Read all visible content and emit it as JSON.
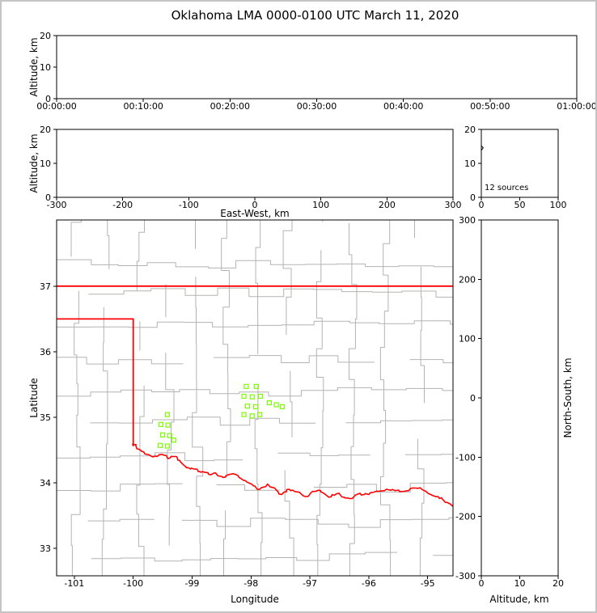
{
  "title": "Oklahoma LMA 0000-0100 UTC March 11, 2020",
  "colors": {
    "background": "#ffffff",
    "frame_border": "#c4c4c4",
    "axis": "#000000",
    "county_lines": "#b3b3b3",
    "state_border": "#ff0000",
    "marker": "#7cfc00"
  },
  "panels": {
    "time_height": {
      "ylabel": "Altitude, km",
      "yticks": [
        0,
        10,
        20
      ],
      "xticks": [
        "00:00:00",
        "00:10:00",
        "00:20:00",
        "00:30:00",
        "00:40:00",
        "00:50:00",
        "01:00:00"
      ]
    },
    "ew_height": {
      "xlabel": "East-West, km",
      "ylabel": "Altitude, km",
      "xticks": [
        -300,
        -200,
        -100,
        0,
        100,
        200,
        300
      ],
      "yticks": [
        0,
        10,
        20
      ]
    },
    "alt_histogram": {
      "annotation": "12 sources",
      "xticks": [
        0,
        50,
        100
      ],
      "yticks": [
        0,
        10,
        20
      ]
    },
    "map": {
      "xlabel": "Longitude",
      "ylabel": "Latitude",
      "xticks": [
        -101,
        -100,
        -99,
        -98,
        -97,
        -96,
        -95
      ],
      "yticks": [
        33,
        34,
        35,
        36,
        37
      ],
      "lon_range": [
        -101.3,
        -94.57
      ],
      "lat_range": [
        32.58,
        38.01
      ]
    },
    "ns_height": {
      "xlabel": "Altitude, km",
      "ylabel": "North-South, km",
      "xticks": [
        0,
        10,
        20
      ],
      "yticks": [
        300,
        200,
        100,
        0,
        -100,
        -200,
        -300
      ]
    }
  },
  "chart_data": {
    "type": "scatter",
    "title": "Oklahoma LMA 0000-0100 UTC March 11, 2020",
    "source_count_annotation": "12 sources",
    "time_height_points": [],
    "ew_height_points": [],
    "ns_height_points": [],
    "altitude_histogram_profile": [
      [
        0,
        0
      ],
      [
        0,
        13.8
      ],
      [
        2.5,
        14.6
      ],
      [
        0,
        15.2
      ],
      [
        0,
        20
      ]
    ],
    "map_markers": {
      "marker": "open-square",
      "color": "#7cfc00",
      "points_lon_lat": [
        [
          -98.08,
          35.47
        ],
        [
          -97.91,
          35.47
        ],
        [
          -98.12,
          35.32
        ],
        [
          -97.98,
          35.31
        ],
        [
          -97.84,
          35.32
        ],
        [
          -98.06,
          35.17
        ],
        [
          -97.92,
          35.16
        ],
        [
          -98.12,
          35.04
        ],
        [
          -97.98,
          35.02
        ],
        [
          -97.85,
          35.04
        ],
        [
          -97.69,
          35.22
        ],
        [
          -97.57,
          35.19
        ],
        [
          -97.47,
          35.16
        ],
        [
          -99.42,
          35.04
        ],
        [
          -99.53,
          34.89
        ],
        [
          -99.41,
          34.88
        ],
        [
          -99.5,
          34.73
        ],
        [
          -99.38,
          34.72
        ],
        [
          -99.54,
          34.57
        ],
        [
          -99.42,
          34.56
        ],
        [
          -99.31,
          34.65
        ]
      ]
    },
    "state_border": {
      "north_border": [
        [
          -101.3,
          37.0
        ],
        [
          -94.57,
          37.0
        ]
      ],
      "west_border": [
        [
          -101.3,
          36.5
        ],
        [
          -100.0,
          36.5
        ],
        [
          -100.0,
          34.56
        ]
      ],
      "red_river": [
        [
          -100.0,
          34.56
        ],
        [
          -99.95,
          34.58
        ],
        [
          -99.9,
          34.51
        ],
        [
          -99.82,
          34.47
        ],
        [
          -99.72,
          34.42
        ],
        [
          -99.6,
          34.4
        ],
        [
          -99.5,
          34.43
        ],
        [
          -99.4,
          34.37
        ],
        [
          -99.3,
          34.4
        ],
        [
          -99.21,
          34.34
        ],
        [
          -99.1,
          34.23
        ],
        [
          -98.97,
          34.21
        ],
        [
          -98.85,
          34.16
        ],
        [
          -98.72,
          34.13
        ],
        [
          -98.6,
          34.15
        ],
        [
          -98.47,
          34.08
        ],
        [
          -98.35,
          34.13
        ],
        [
          -98.22,
          34.11
        ],
        [
          -98.09,
          34.03
        ],
        [
          -97.95,
          33.95
        ],
        [
          -97.85,
          33.9
        ],
        [
          -97.72,
          33.98
        ],
        [
          -97.6,
          33.92
        ],
        [
          -97.48,
          33.82
        ],
        [
          -97.35,
          33.9
        ],
        [
          -97.21,
          33.86
        ],
        [
          -97.08,
          33.79
        ],
        [
          -96.95,
          33.87
        ],
        [
          -96.82,
          33.88
        ],
        [
          -96.68,
          33.78
        ],
        [
          -96.55,
          33.83
        ],
        [
          -96.42,
          33.78
        ],
        [
          -96.28,
          33.76
        ],
        [
          -96.15,
          33.84
        ],
        [
          -96.0,
          33.82
        ],
        [
          -95.85,
          33.87
        ],
        [
          -95.7,
          33.9
        ],
        [
          -95.55,
          33.88
        ],
        [
          -95.4,
          33.87
        ],
        [
          -95.25,
          33.92
        ],
        [
          -95.1,
          33.9
        ],
        [
          -94.95,
          33.82
        ],
        [
          -94.8,
          33.76
        ],
        [
          -94.7,
          33.7
        ],
        [
          -94.57,
          33.64
        ]
      ]
    }
  }
}
